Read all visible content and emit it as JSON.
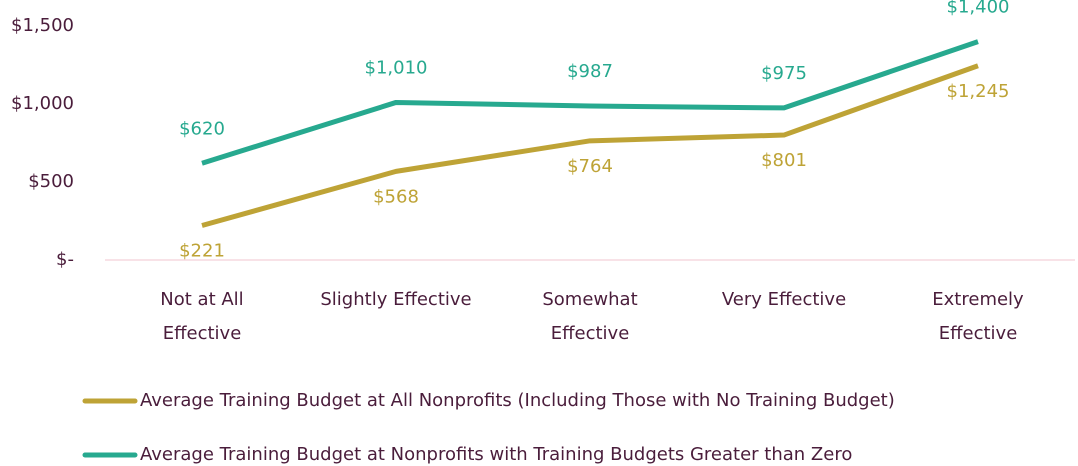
{
  "chart_data": {
    "type": "line",
    "categories": [
      "Not at All\nEffective",
      "Slightly Effective",
      "Somewhat\nEffective",
      "Very Effective",
      "Extremely\nEffective"
    ],
    "series": [
      {
        "name": "Average Training Budget at All Nonprofits (Including Those with No Training Budget)",
        "color": "#bea336",
        "values": [
          221,
          568,
          764,
          801,
          1245
        ],
        "value_labels": [
          "$221",
          "$568",
          "$764",
          "$801",
          "$1,245"
        ]
      },
      {
        "name": "Average Training Budget at Nonprofits with Training Budgets Greater than Zero",
        "color": "#27a98f",
        "values": [
          620,
          1010,
          987,
          975,
          1400
        ],
        "value_labels": [
          "$620",
          "$1,010",
          "$987",
          "$975",
          "$1,400"
        ]
      }
    ],
    "ylim": [
      0,
      1500
    ],
    "yticks": [
      {
        "value": 0,
        "label": "$-"
      },
      {
        "value": 500,
        "label": "$500"
      },
      {
        "value": 1000,
        "label": "$1,000"
      },
      {
        "value": 1500,
        "label": "$1,500"
      }
    ],
    "grid": false,
    "legend": "bottom"
  }
}
